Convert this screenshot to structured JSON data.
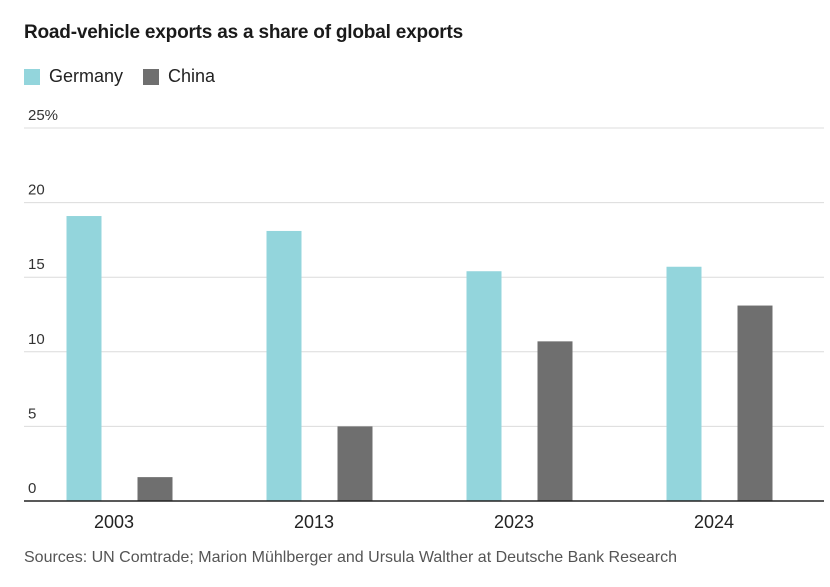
{
  "chart_data": {
    "type": "bar",
    "title": "Road-vehicle exports as a share of global exports",
    "categories": [
      "2003",
      "2013",
      "2023",
      "2024"
    ],
    "series": [
      {
        "name": "Germany",
        "color": "#93d5dc",
        "values": [
          19.1,
          18.1,
          15.4,
          15.7
        ]
      },
      {
        "name": "China",
        "color": "#6f6f6f",
        "values": [
          1.6,
          5.0,
          10.7,
          13.1
        ]
      }
    ],
    "ylim": [
      0,
      25
    ],
    "yticks": [
      0,
      5,
      10,
      15,
      20,
      25
    ],
    "ytick_labels": [
      "0",
      "5",
      "10",
      "15",
      "20",
      "25%"
    ],
    "grid": true,
    "legend_position": "top-left",
    "xlabel": "",
    "ylabel": ""
  },
  "source": "Sources: UN Comtrade; Marion Mühlberger and Ursula Walther at Deutsche Bank Research"
}
